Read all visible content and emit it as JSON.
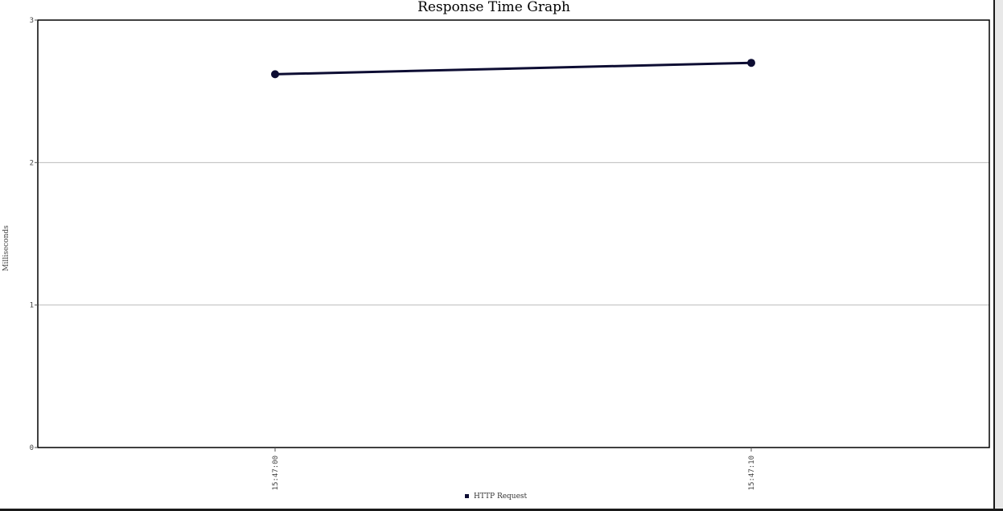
{
  "chart_data": {
    "type": "line",
    "title": "Response Time Graph",
    "xlabel": "",
    "ylabel": "Milliseconds",
    "categories": [
      "15:47:00",
      "15:47:10"
    ],
    "series": [
      {
        "name": "HTTP Request",
        "values": [
          2.62,
          2.7
        ],
        "color": "#0d0d33"
      }
    ],
    "ylim": [
      0,
      3
    ],
    "yticks": [
      "0",
      "1",
      "2",
      "3"
    ],
    "grid": true,
    "legend": "bottom-center"
  }
}
